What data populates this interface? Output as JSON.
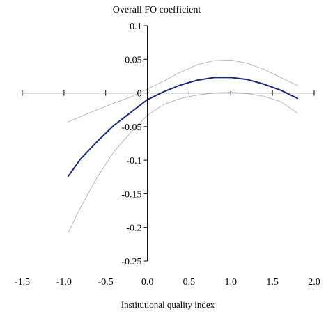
{
  "chart_data": {
    "type": "line",
    "title": "Overall FO coefficient",
    "xlabel": "Institutional quality index",
    "ylabel": "",
    "xlim": [
      -1.5,
      2.0
    ],
    "ylim": [
      -0.25,
      0.1
    ],
    "x_ticks": [
      "-1.5",
      "-1.0",
      "-0.5",
      "0.0",
      "0.5",
      "1.0",
      "1.5",
      "2.0"
    ],
    "y_ticks": [
      "0.1",
      "0.05",
      "0",
      "-0.05",
      "-0.1",
      "-0.15",
      "-0.2",
      "-0.25"
    ],
    "x_tick_values": [
      -1.5,
      -1.0,
      -0.5,
      0.0,
      0.5,
      1.0,
      1.5,
      2.0
    ],
    "y_tick_values": [
      0.1,
      0.05,
      0,
      -0.05,
      -0.1,
      -0.15,
      -0.2,
      -0.25
    ],
    "grid": false,
    "legend": "none",
    "series": [
      {
        "role": "estimate",
        "color": "#1a2a8c",
        "x": [
          -0.95,
          -0.8,
          -0.6,
          -0.4,
          -0.2,
          0.0,
          0.2,
          0.4,
          0.6,
          0.8,
          1.0,
          1.2,
          1.4,
          1.6,
          1.8
        ],
        "y": [
          -0.124,
          -0.098,
          -0.072,
          -0.048,
          -0.029,
          -0.01,
          0.002,
          0.012,
          0.019,
          0.023,
          0.023,
          0.02,
          0.013,
          0.004,
          -0.008
        ]
      },
      {
        "role": "upper-bound",
        "color": "#b8b8b8",
        "x": [
          -0.95,
          -0.8,
          -0.6,
          -0.4,
          -0.2,
          0.0,
          0.2,
          0.4,
          0.6,
          0.8,
          1.0,
          1.2,
          1.4,
          1.6,
          1.8
        ],
        "y": [
          -0.043,
          -0.035,
          -0.025,
          -0.015,
          -0.006,
          0.006,
          0.018,
          0.031,
          0.042,
          0.048,
          0.049,
          0.044,
          0.035,
          0.023,
          0.011
        ]
      },
      {
        "role": "lower-bound",
        "color": "#b8b8b8",
        "x": [
          -0.95,
          -0.8,
          -0.6,
          -0.4,
          -0.2,
          0.0,
          0.2,
          0.4,
          0.6,
          0.8,
          1.0,
          1.2,
          1.4,
          1.6,
          1.8
        ],
        "y": [
          -0.208,
          -0.17,
          -0.125,
          -0.087,
          -0.059,
          -0.033,
          -0.017,
          -0.008,
          -0.003,
          0.0,
          0.001,
          -0.001,
          -0.005,
          -0.013,
          -0.03
        ]
      }
    ]
  }
}
